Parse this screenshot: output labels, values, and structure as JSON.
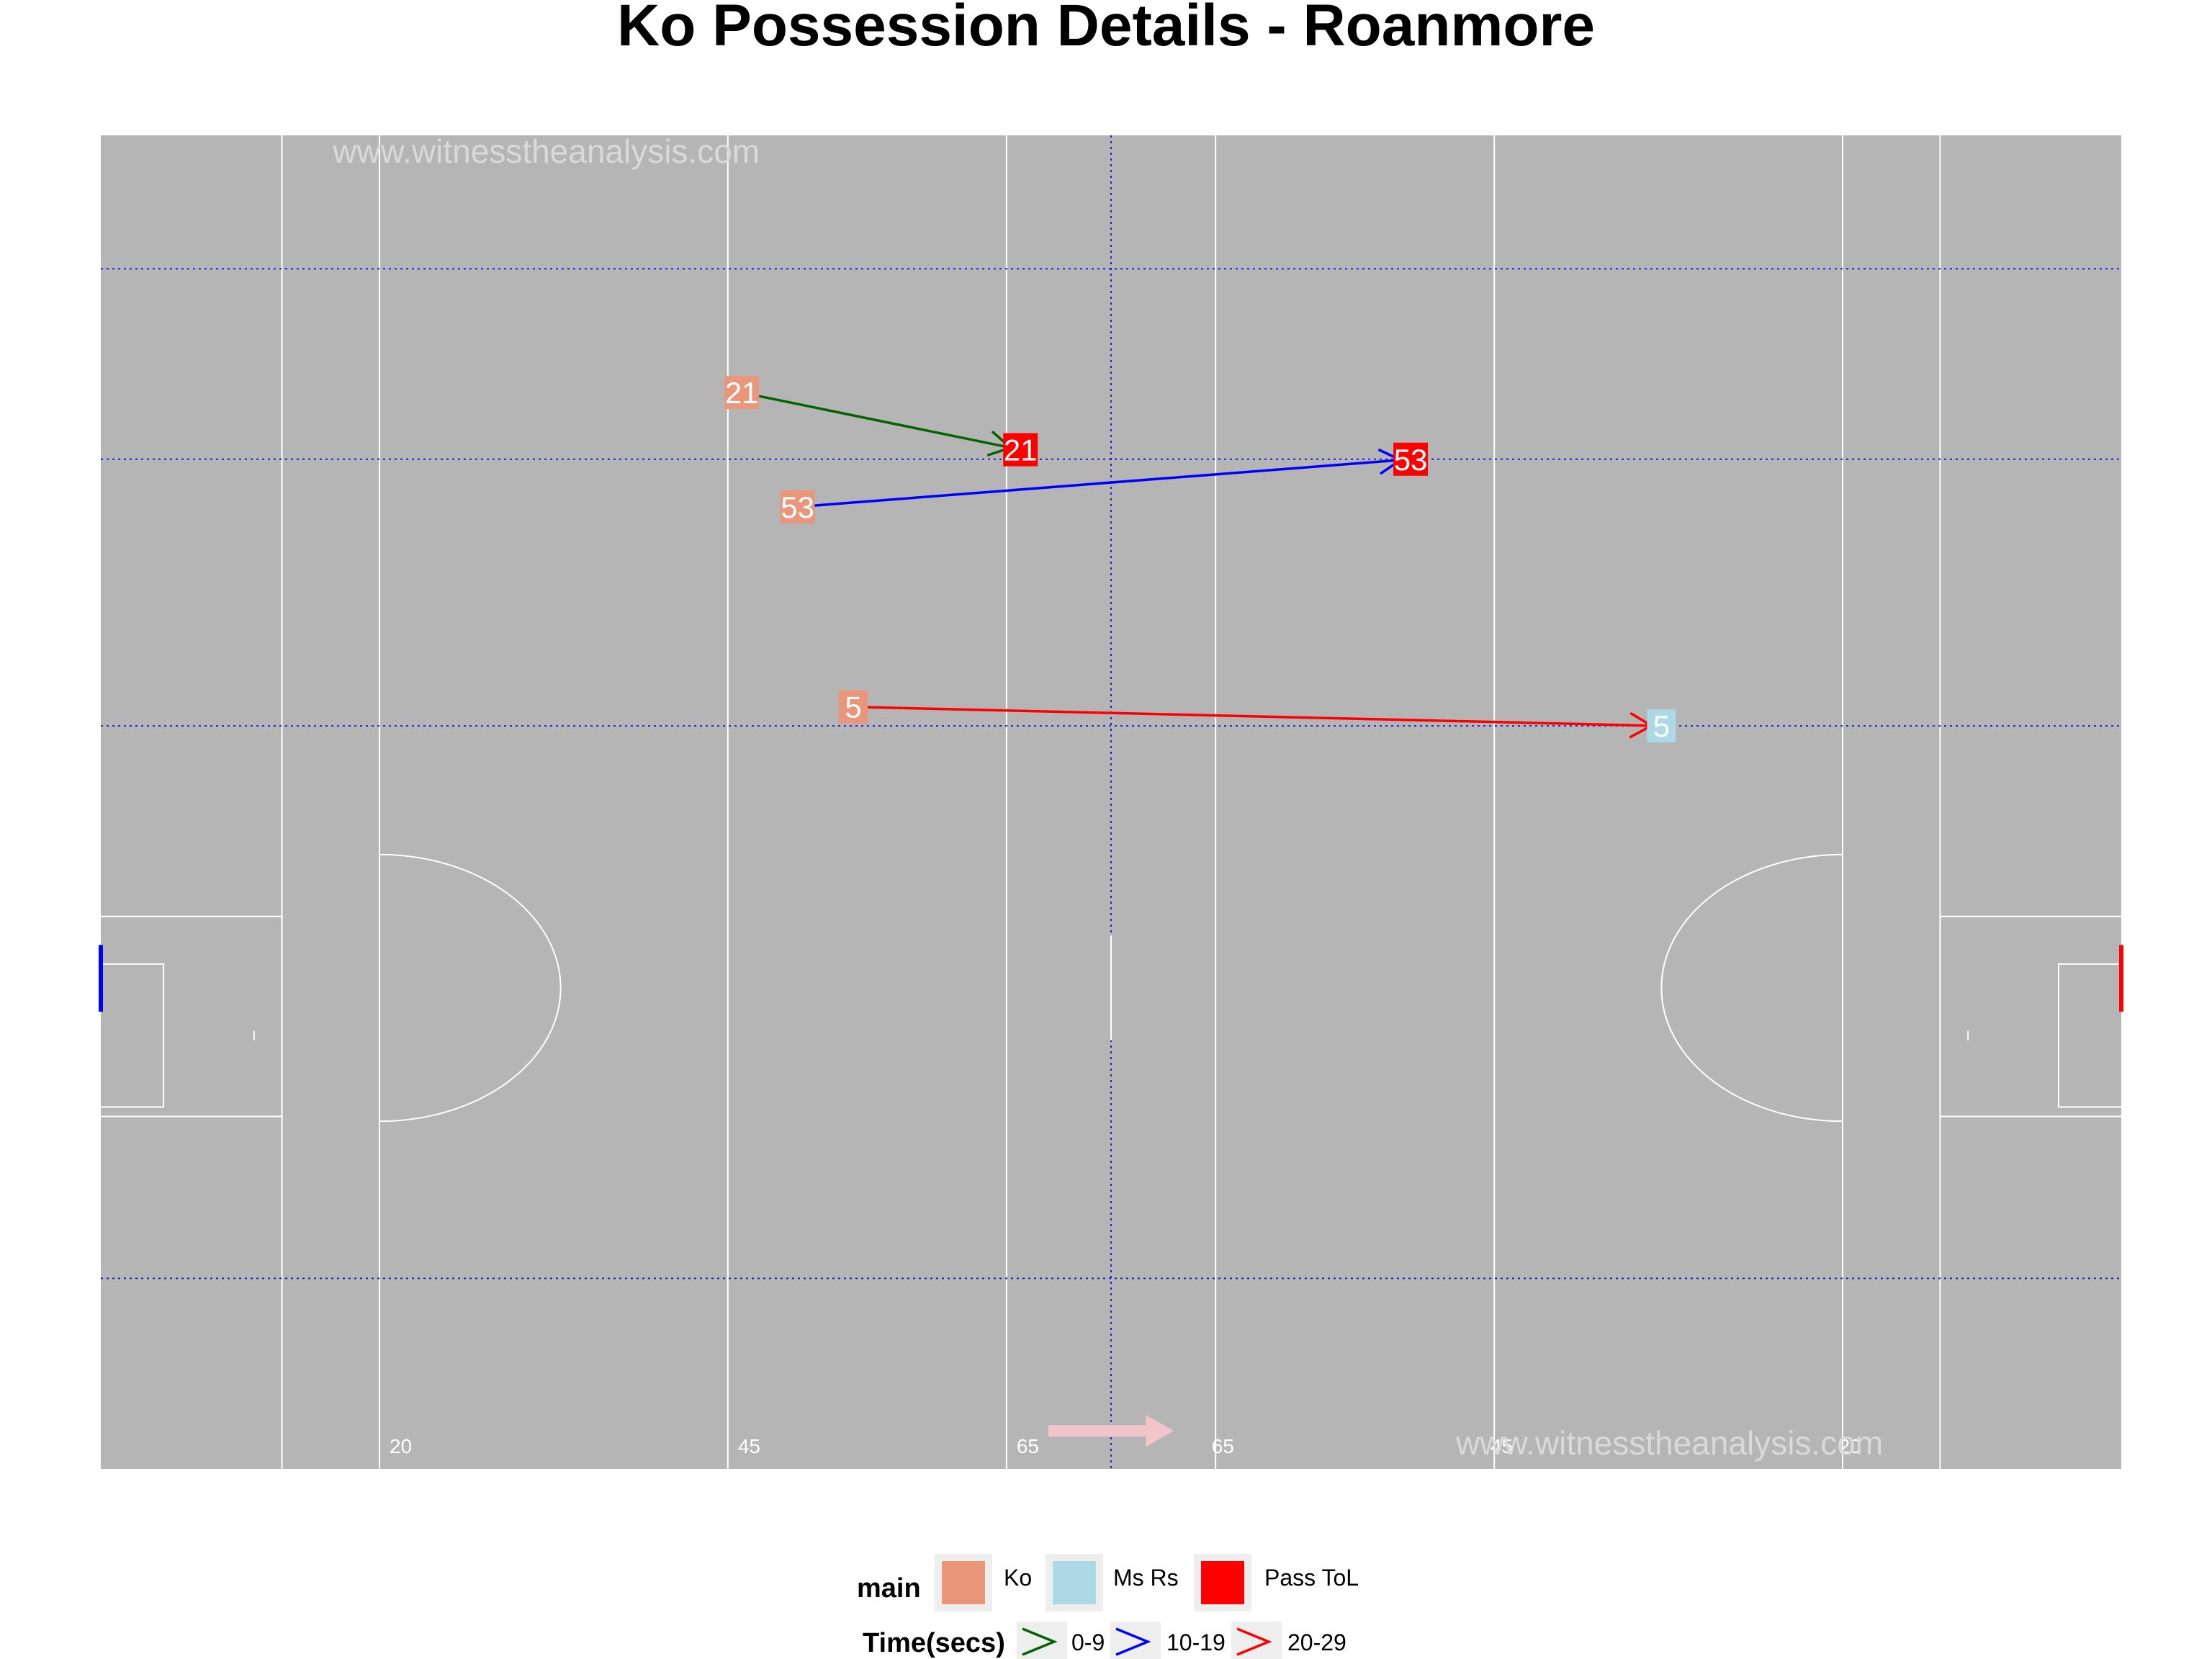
{
  "chart_data": {
    "type": "scatter",
    "title": "Ko Possession Details - Roanmore",
    "watermark": "www.witnesstheanalysis.com",
    "pitch": {
      "background": "#b5b5b5",
      "line_color": "#ffffff",
      "grid_color": "#1f1fd6",
      "distance_labels": [
        "20",
        "45",
        "65",
        "65",
        "45",
        "20"
      ],
      "attack_direction": "left-to-right",
      "attack_arrow_color": "#f2c4cc",
      "left_goal_color": "#0000ff",
      "right_goal_color": "#ff0000"
    },
    "passes": [
      {
        "player": "21",
        "from": [
          46,
          113
        ],
        "to": [
          66,
          107
        ],
        "start_label": "Ko",
        "end_label": "Pass ToL",
        "time": "0-9"
      },
      {
        "player": "53",
        "from": [
          50,
          101
        ],
        "to": [
          94,
          106
        ],
        "start_label": "Ko",
        "end_label": "Pass ToL",
        "time": "10-19"
      },
      {
        "player": "5",
        "from": [
          54,
          80
        ],
        "to": [
          112,
          78
        ],
        "start_label": "Ko",
        "end_label": "Ms Rs",
        "time": "20-29"
      }
    ],
    "legend": {
      "main_title": "main",
      "main_items": [
        {
          "label": "Ko",
          "color": "#e9967a"
        },
        {
          "label": "Ms Rs",
          "color": "#add8e6"
        },
        {
          "label": "Pass ToL",
          "color": "#ff0000"
        }
      ],
      "time_title": "Time(secs)",
      "time_items": [
        {
          "label": "0-9",
          "color": "#006400"
        },
        {
          "label": "10-19",
          "color": "#0000ff"
        },
        {
          "label": "20-29",
          "color": "#ff0000"
        }
      ],
      "placement": "bottom"
    }
  }
}
